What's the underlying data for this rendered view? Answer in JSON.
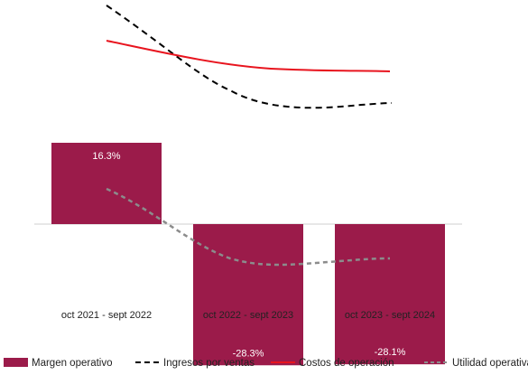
{
  "chart_data": {
    "type": "bar",
    "categories": [
      "oct 2021 - sept 2022",
      "oct 2022 - sept 2023",
      "oct 2023 - sept 2024"
    ],
    "series": [
      {
        "name": "Margen operativo",
        "kind": "bar",
        "color": "#9B1B4A",
        "values": [
          16.3,
          -28.3,
          -28.1
        ],
        "labels": [
          "16.3%",
          "-28.3%",
          "-28.1%"
        ]
      },
      {
        "name": "Ingresos por ventas",
        "kind": "line",
        "style": "dashed",
        "color": "#000000"
      },
      {
        "name": "Costos de operación",
        "kind": "line",
        "style": "solid",
        "color": "#E8141E"
      },
      {
        "name": "Utilidad operativa",
        "kind": "line",
        "style": "dashed",
        "color": "#8C8C8C"
      }
    ],
    "legend_position": "bottom",
    "grid": false
  }
}
